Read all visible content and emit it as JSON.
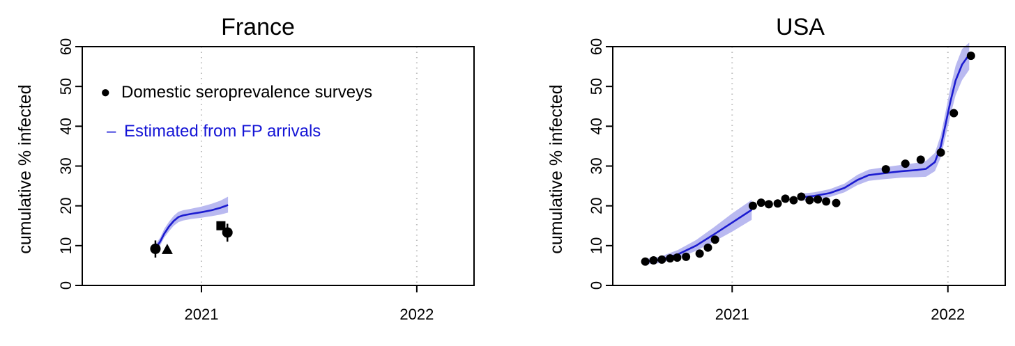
{
  "colors": {
    "estimate_line": "#1b1bd0",
    "band": "#b9b9f0",
    "points": "#000000",
    "gridline": "#bdbdbd"
  },
  "chart_data": [
    {
      "type": "line",
      "title": "France",
      "ylabel": "cumulative % infected",
      "xlabel": "",
      "ylim": [
        0,
        60
      ],
      "xlim": [
        "2020-06-13",
        "2022-04-08"
      ],
      "y_ticks": [
        "0",
        "10",
        "20",
        "30",
        "40",
        "50",
        "60"
      ],
      "x_ticks": [
        {
          "date": "2021-01-01",
          "label": "2021"
        },
        {
          "date": "2022-01-01",
          "label": "2022"
        }
      ],
      "grid": "dotted vertical lines at year starts",
      "legend": {
        "placement": "top-left",
        "entries": [
          {
            "symbol": "●",
            "label": "Domestic seroprevalence surveys"
          },
          {
            "symbol": "–",
            "label": "Estimated from FP arrivals"
          }
        ]
      },
      "series": [
        {
          "name": "Estimated from FP arrivals",
          "kind": "line_with_band",
          "points": [
            [
              "2020-10-16",
              9.5,
              8.5,
              10.5
            ],
            [
              "2020-10-23",
              11.0,
              10.0,
              12.0
            ],
            [
              "2020-10-30",
              13.0,
              12.0,
              14.2
            ],
            [
              "2020-11-07",
              14.8,
              13.6,
              16.0
            ],
            [
              "2020-11-15",
              16.2,
              15.0,
              17.5
            ],
            [
              "2020-11-23",
              17.2,
              15.9,
              18.5
            ],
            [
              "2020-12-01",
              17.6,
              16.3,
              18.9
            ],
            [
              "2020-12-15",
              18.0,
              16.7,
              19.3
            ],
            [
              "2021-01-01",
              18.4,
              17.0,
              19.8
            ],
            [
              "2021-01-18",
              18.9,
              17.4,
              20.5
            ],
            [
              "2021-02-02",
              19.5,
              17.8,
              21.3
            ],
            [
              "2021-02-15",
              20.2,
              18.3,
              22.3
            ]
          ]
        },
        {
          "name": "Domestic seroprevalence surveys",
          "kind": "points",
          "points": [
            {
              "date": "2020-10-15",
              "value": 9.2,
              "lo": 7.0,
              "hi": 11.3,
              "shape": "circle"
            },
            {
              "date": "2020-11-04",
              "value": 9.0,
              "shape": "triangle"
            },
            {
              "date": "2021-02-03",
              "value": 15.0,
              "shape": "square"
            },
            {
              "date": "2021-02-14",
              "value": 13.3,
              "lo": 11.0,
              "hi": 15.5,
              "shape": "circle"
            }
          ]
        }
      ]
    },
    {
      "type": "line",
      "title": "USA",
      "ylabel": "cumulative % infected",
      "xlabel": "",
      "ylim": [
        0,
        60
      ],
      "xlim": [
        "2020-06-13",
        "2022-04-08"
      ],
      "y_ticks": [
        "0",
        "10",
        "20",
        "30",
        "40",
        "50",
        "60"
      ],
      "x_ticks": [
        {
          "date": "2021-01-01",
          "label": "2021"
        },
        {
          "date": "2022-01-01",
          "label": "2022"
        }
      ],
      "grid": "dotted vertical lines at year starts",
      "series": [
        {
          "name": "Estimated from FP arrivals",
          "kind": "line_with_band",
          "segments": [
            [
              [
                "2020-08-05",
                5.9,
                5.3,
                6.6
              ],
              [
                "2020-09-01",
                6.4,
                5.6,
                7.2
              ],
              [
                "2020-10-01",
                7.8,
                6.8,
                8.9
              ],
              [
                "2020-11-01",
                10.0,
                8.7,
                11.4
              ],
              [
                "2020-12-01",
                12.8,
                11.0,
                14.6
              ],
              [
                "2021-01-01",
                15.8,
                13.5,
                18.1
              ],
              [
                "2021-02-03",
                19.0,
                16.5,
                21.5
              ]
            ],
            [
              [
                "2021-05-01",
                22.2,
                21.3,
                23.1
              ],
              [
                "2021-05-20",
                22.5,
                21.6,
                23.4
              ],
              [
                "2021-06-15",
                23.2,
                22.2,
                24.2
              ],
              [
                "2021-07-10",
                24.5,
                23.4,
                25.6
              ],
              [
                "2021-08-01",
                26.5,
                25.2,
                27.8
              ],
              [
                "2021-08-20",
                27.7,
                26.3,
                29.1
              ],
              [
                "2021-09-15",
                28.2,
                26.7,
                29.7
              ],
              [
                "2021-10-15",
                28.7,
                27.1,
                30.3
              ],
              [
                "2021-11-10",
                29.0,
                27.2,
                30.8
              ],
              [
                "2021-11-25",
                29.3,
                27.3,
                31.3
              ],
              [
                "2021-12-10",
                31.0,
                28.7,
                33.3
              ],
              [
                "2021-12-20",
                35.0,
                32.2,
                37.8
              ],
              [
                "2021-12-28",
                40.5,
                37.4,
                43.6
              ],
              [
                "2022-01-05",
                46.0,
                42.5,
                49.5
              ],
              [
                "2022-01-14",
                51.5,
                47.8,
                55.2
              ],
              [
                "2022-01-25",
                55.5,
                51.6,
                59.4
              ],
              [
                "2022-02-06",
                58.0,
                54.2,
                61.0
              ]
            ]
          ]
        },
        {
          "name": "Domestic seroprevalence surveys",
          "kind": "points",
          "points": [
            [
              "2020-08-07",
              6.0
            ],
            [
              "2020-08-21",
              6.3
            ],
            [
              "2020-09-04",
              6.5
            ],
            [
              "2020-09-18",
              6.8
            ],
            [
              "2020-09-30",
              7.0
            ],
            [
              "2020-10-15",
              7.2
            ],
            [
              "2020-11-07",
              8.0
            ],
            [
              "2020-11-21",
              9.5
            ],
            [
              "2020-12-03",
              11.5
            ],
            [
              "2021-02-05",
              20.0
            ],
            [
              "2021-02-19",
              20.8
            ],
            [
              "2021-03-04",
              20.4
            ],
            [
              "2021-03-19",
              20.6
            ],
            [
              "2021-04-01",
              21.8
            ],
            [
              "2021-04-15",
              21.4
            ],
            [
              "2021-04-28",
              22.3
            ],
            [
              "2021-05-12",
              21.4
            ],
            [
              "2021-05-26",
              21.6
            ],
            [
              "2021-06-09",
              21.1
            ],
            [
              "2021-06-26",
              20.7
            ],
            [
              "2021-09-18",
              29.2
            ],
            [
              "2021-10-21",
              30.6
            ],
            [
              "2021-11-16",
              31.6
            ],
            [
              "2021-12-20",
              33.4
            ],
            [
              "2022-01-11",
              43.3
            ],
            [
              "2022-02-09",
              57.7
            ]
          ]
        }
      ]
    }
  ]
}
